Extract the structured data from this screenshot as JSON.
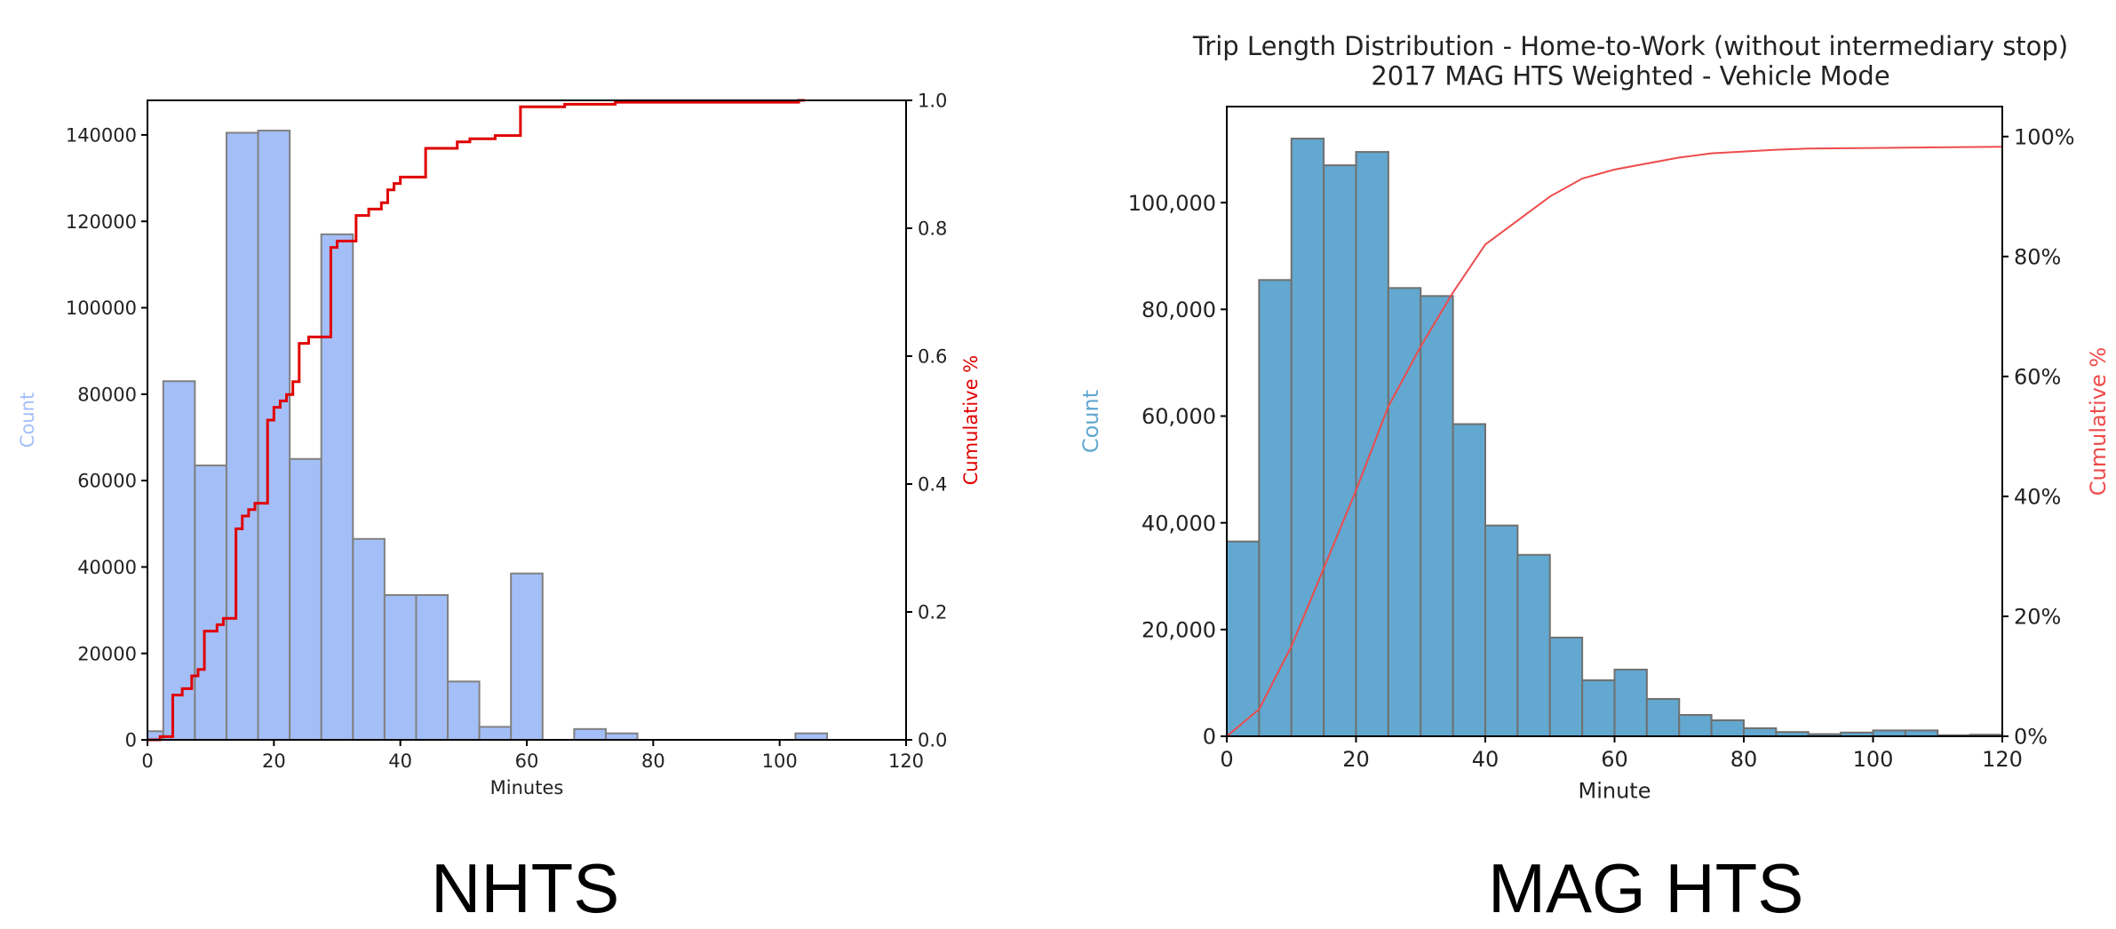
{
  "chart_data": [
    {
      "type": "bar",
      "caption": "NHTS",
      "title": "",
      "xlabel": "Minutes",
      "ylabel": "Count",
      "y2label": "Cumulative %",
      "xlim": [
        0,
        120
      ],
      "ylim": [
        0,
        148000
      ],
      "y2lim": [
        0,
        1.0
      ],
      "xticks": [
        "0",
        "20",
        "40",
        "60",
        "80",
        "100",
        "120"
      ],
      "yticks": [
        "0",
        "20000",
        "40000",
        "60000",
        "80000",
        "100000",
        "120000",
        "140000"
      ],
      "y2ticks": [
        "0.0",
        "0.2",
        "0.4",
        "0.6",
        "0.8",
        "1.0"
      ],
      "bar_color": "#a4bff8",
      "bar_edge": "#808080",
      "line_color": "#e00000",
      "ylabel_color": "#a4bff8",
      "y2label_color": "#e00000",
      "bins": [
        {
          "x0": 0,
          "x1": 2.5,
          "count": 2000
        },
        {
          "x0": 2.5,
          "x1": 7.5,
          "count": 83000
        },
        {
          "x0": 7.5,
          "x1": 12.5,
          "count": 63500
        },
        {
          "x0": 12.5,
          "x1": 17.5,
          "count": 140500
        },
        {
          "x0": 17.5,
          "x1": 22.5,
          "count": 141000
        },
        {
          "x0": 22.5,
          "x1": 27.5,
          "count": 65000
        },
        {
          "x0": 27.5,
          "x1": 32.5,
          "count": 117000
        },
        {
          "x0": 32.5,
          "x1": 37.5,
          "count": 46500
        },
        {
          "x0": 37.5,
          "x1": 42.5,
          "count": 33500
        },
        {
          "x0": 42.5,
          "x1": 47.5,
          "count": 33500
        },
        {
          "x0": 47.5,
          "x1": 52.5,
          "count": 13500
        },
        {
          "x0": 52.5,
          "x1": 57.5,
          "count": 3000
        },
        {
          "x0": 57.5,
          "x1": 62.5,
          "count": 38500
        },
        {
          "x0": 67.5,
          "x1": 72.5,
          "count": 2500
        },
        {
          "x0": 72.5,
          "x1": 77.5,
          "count": 1500
        },
        {
          "x0": 102.5,
          "x1": 107.5,
          "count": 1500
        }
      ],
      "cumulative_step": [
        [
          0,
          0.0
        ],
        [
          2,
          0.0
        ],
        [
          2,
          0.005
        ],
        [
          4,
          0.005
        ],
        [
          4,
          0.07
        ],
        [
          5.5,
          0.07
        ],
        [
          5.5,
          0.08
        ],
        [
          7,
          0.08
        ],
        [
          7,
          0.1
        ],
        [
          8,
          0.1
        ],
        [
          8,
          0.11
        ],
        [
          9,
          0.11
        ],
        [
          9,
          0.17
        ],
        [
          11,
          0.17
        ],
        [
          11,
          0.18
        ],
        [
          12,
          0.18
        ],
        [
          12,
          0.19
        ],
        [
          14,
          0.19
        ],
        [
          14,
          0.33
        ],
        [
          15,
          0.33
        ],
        [
          15,
          0.35
        ],
        [
          16,
          0.35
        ],
        [
          16,
          0.36
        ],
        [
          17,
          0.36
        ],
        [
          17,
          0.37
        ],
        [
          19,
          0.37
        ],
        [
          19,
          0.5
        ],
        [
          20,
          0.5
        ],
        [
          20,
          0.52
        ],
        [
          21,
          0.52
        ],
        [
          21,
          0.53
        ],
        [
          22,
          0.53
        ],
        [
          22,
          0.54
        ],
        [
          23,
          0.54
        ],
        [
          23,
          0.56
        ],
        [
          24,
          0.56
        ],
        [
          24,
          0.62
        ],
        [
          25.5,
          0.62
        ],
        [
          25.5,
          0.63
        ],
        [
          29,
          0.63
        ],
        [
          29,
          0.77
        ],
        [
          30,
          0.77
        ],
        [
          30,
          0.78
        ],
        [
          33,
          0.78
        ],
        [
          33,
          0.82
        ],
        [
          35,
          0.82
        ],
        [
          35,
          0.83
        ],
        [
          37,
          0.83
        ],
        [
          37,
          0.84
        ],
        [
          38,
          0.84
        ],
        [
          38,
          0.86
        ],
        [
          39,
          0.86
        ],
        [
          39,
          0.87
        ],
        [
          40,
          0.87
        ],
        [
          40,
          0.88
        ],
        [
          44,
          0.88
        ],
        [
          44,
          0.925
        ],
        [
          49,
          0.925
        ],
        [
          49,
          0.935
        ],
        [
          51,
          0.935
        ],
        [
          51,
          0.94
        ],
        [
          55,
          0.94
        ],
        [
          55,
          0.945
        ],
        [
          59,
          0.945
        ],
        [
          59,
          0.99
        ],
        [
          66,
          0.99
        ],
        [
          66,
          0.994
        ],
        [
          74,
          0.994
        ],
        [
          74,
          0.997
        ],
        [
          103,
          0.997
        ],
        [
          103,
          1.0
        ],
        [
          104,
          1.0
        ]
      ]
    },
    {
      "type": "bar",
      "caption": "MAG HTS",
      "title": "Trip Length Distribution - Home-to-Work (without intermediary stop)",
      "subtitle": "2017 MAG HTS Weighted - Vehicle Mode",
      "xlabel": "Minute",
      "ylabel": "Count",
      "y2label": "Cumulative %",
      "xlim": [
        0,
        120
      ],
      "ylim": [
        0,
        118000
      ],
      "y2lim": [
        0,
        1.05
      ],
      "xticks": [
        "0",
        "20",
        "40",
        "60",
        "80",
        "100",
        "120"
      ],
      "yticks": [
        "0",
        "20,000",
        "40,000",
        "60,000",
        "80,000",
        "100,000"
      ],
      "y2ticks": [
        "0%",
        "20%",
        "40%",
        "60%",
        "80%",
        "100%"
      ],
      "bar_color": "#62a8d0",
      "bar_edge": "#707070",
      "line_color": "#ee4b4b",
      "ylabel_color": "#62a8d0",
      "y2label_color": "#ee4b4b",
      "bin_width": 5,
      "counts": [
        36500,
        85500,
        112000,
        107000,
        109500,
        84000,
        82500,
        58500,
        39500,
        34000,
        18500,
        10500,
        12500,
        7000,
        4000,
        3000,
        1500,
        800,
        400,
        700,
        1100,
        1100,
        200,
        300
      ],
      "cumulative": [
        [
          0,
          0.0
        ],
        [
          5,
          0.045
        ],
        [
          10,
          0.15
        ],
        [
          15,
          0.28
        ],
        [
          20,
          0.41
        ],
        [
          25,
          0.55
        ],
        [
          30,
          0.65
        ],
        [
          35,
          0.74
        ],
        [
          40,
          0.82
        ],
        [
          45,
          0.86
        ],
        [
          50,
          0.9
        ],
        [
          55,
          0.93
        ],
        [
          60,
          0.945
        ],
        [
          65,
          0.955
        ],
        [
          70,
          0.965
        ],
        [
          75,
          0.972
        ],
        [
          80,
          0.975
        ],
        [
          85,
          0.978
        ],
        [
          90,
          0.98
        ],
        [
          100,
          0.981
        ],
        [
          110,
          0.982
        ],
        [
          120,
          0.983
        ]
      ]
    }
  ]
}
